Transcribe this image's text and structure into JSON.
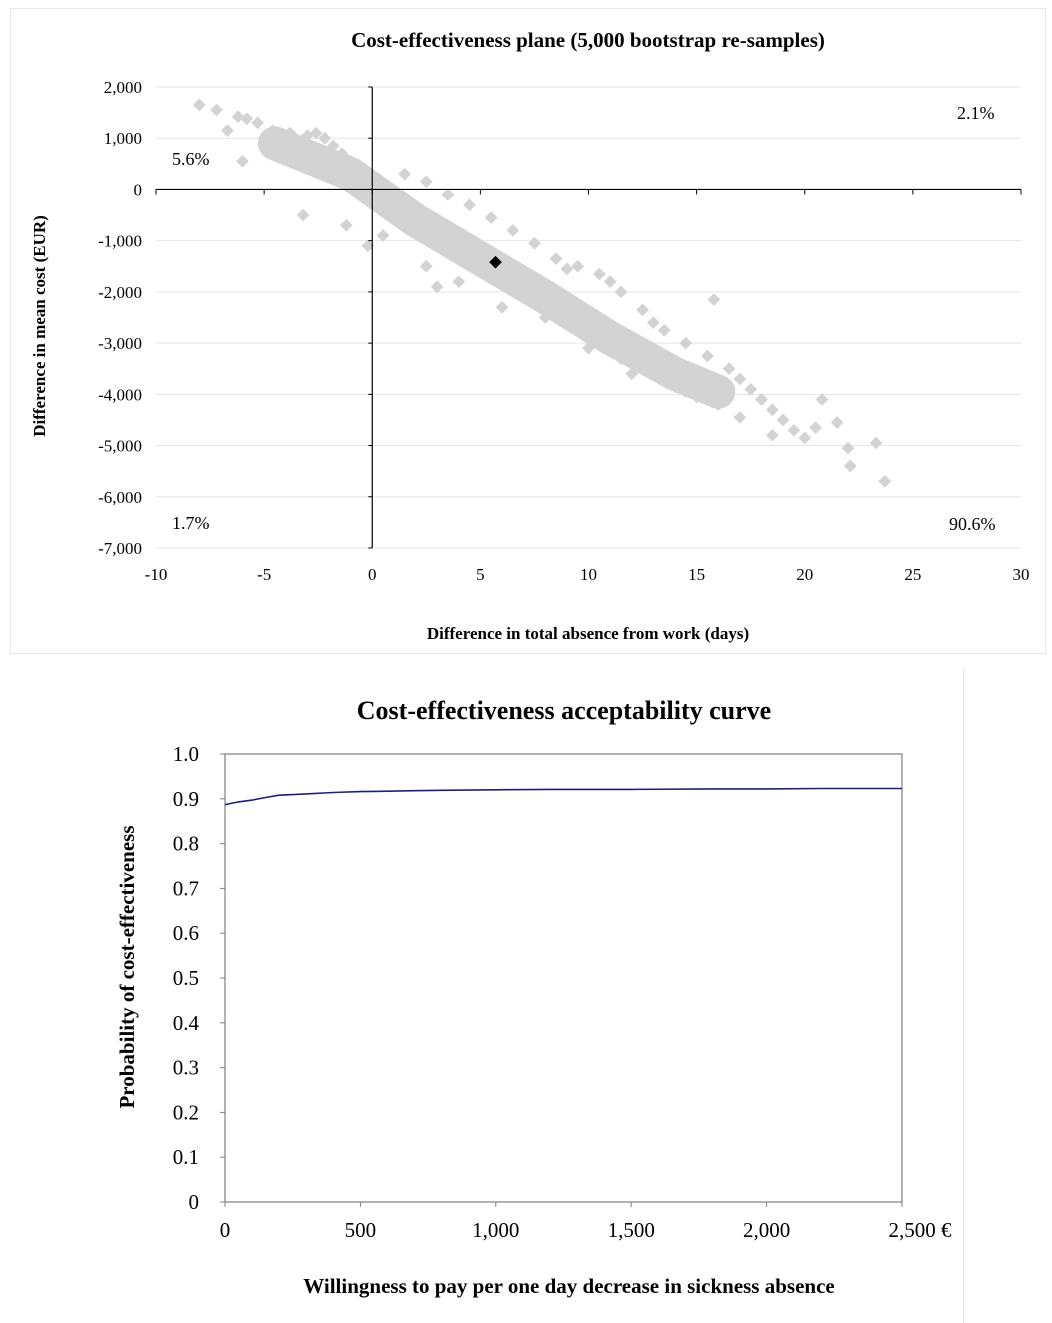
{
  "chart_data": [
    {
      "type": "scatter",
      "title": "Cost-effectiveness plane (5,000 bootstrap re-samples)",
      "xlabel": "Difference in total absence from work (days)",
      "ylabel": "Difference in mean cost (EUR)",
      "xlim": [
        -10,
        30
      ],
      "ylim": [
        -7000,
        2000
      ],
      "x_ticks": [
        -10,
        -5,
        0,
        5,
        10,
        15,
        20,
        25,
        30
      ],
      "x_tick_labels": [
        "-10",
        "-5",
        "0",
        "5",
        "10",
        "15",
        "20",
        "25",
        "30"
      ],
      "y_ticks": [
        2000,
        1000,
        0,
        -1000,
        -2000,
        -3000,
        -4000,
        -5000,
        -6000,
        -7000
      ],
      "y_tick_labels": [
        "2,000",
        "1,000",
        "0",
        "-1,000",
        "-2,000",
        "-3,000",
        "-4,000",
        "-5,000",
        "-6,000",
        "-7,000"
      ],
      "grid": true,
      "point_estimate": {
        "x": 5.7,
        "y": -1420
      },
      "series": [
        {
          "values": [
            [
              -8.0,
              1650
            ],
            [
              -7.2,
              1550
            ],
            [
              -6.7,
              1150
            ],
            [
              -6.2,
              1420
            ],
            [
              -5.8,
              1380
            ],
            [
              -6.0,
              550
            ],
            [
              -5.3,
              1300
            ],
            [
              -5.0,
              1000
            ],
            [
              -4.6,
              1150
            ],
            [
              -4.2,
              1050
            ],
            [
              -3.8,
              1100
            ],
            [
              -3.4,
              950
            ],
            [
              -3.0,
              1050
            ],
            [
              -2.6,
              1100
            ],
            [
              -2.2,
              1000
            ],
            [
              -1.8,
              850
            ],
            [
              -1.4,
              700
            ],
            [
              -1.0,
              550
            ],
            [
              -0.6,
              400
            ],
            [
              -0.2,
              300
            ],
            [
              0.2,
              150
            ],
            [
              -4.5,
              700
            ],
            [
              -3.5,
              600
            ],
            [
              -2.5,
              450
            ],
            [
              -1.5,
              350
            ],
            [
              -0.5,
              150
            ],
            [
              0.5,
              -50
            ],
            [
              -3.2,
              -500
            ],
            [
              -1.2,
              -700
            ],
            [
              -0.2,
              -1100
            ],
            [
              0.5,
              -900
            ],
            [
              1.0,
              -200
            ],
            [
              1.5,
              -350
            ],
            [
              2.0,
              -500
            ],
            [
              2.5,
              -650
            ],
            [
              3.0,
              -800
            ],
            [
              3.5,
              -950
            ],
            [
              4.0,
              -1100
            ],
            [
              4.5,
              -1250
            ],
            [
              5.0,
              -1400
            ],
            [
              5.5,
              -1550
            ],
            [
              6.0,
              -1700
            ],
            [
              6.5,
              -1850
            ],
            [
              7.0,
              -2000
            ],
            [
              7.5,
              -2150
            ],
            [
              8.0,
              -2300
            ],
            [
              8.5,
              -2450
            ],
            [
              9.0,
              -2600
            ],
            [
              9.5,
              -2750
            ],
            [
              10.0,
              -2850
            ],
            [
              10.5,
              -3000
            ],
            [
              11.0,
              -3150
            ],
            [
              11.5,
              -3300
            ],
            [
              12.0,
              -3400
            ],
            [
              12.5,
              -3500
            ],
            [
              13.0,
              -3600
            ],
            [
              13.5,
              -3700
            ],
            [
              14.0,
              -3850
            ],
            [
              14.5,
              -3950
            ],
            [
              15.0,
              -4050
            ],
            [
              1.5,
              300
            ],
            [
              2.5,
              150
            ],
            [
              3.5,
              -100
            ],
            [
              4.5,
              -300
            ],
            [
              5.5,
              -550
            ],
            [
              6.5,
              -800
            ],
            [
              7.5,
              -1050
            ],
            [
              8.5,
              -1350
            ],
            [
              9.5,
              -1500
            ],
            [
              10.5,
              -1650
            ],
            [
              11.5,
              -2000
            ],
            [
              12.5,
              -2350
            ],
            [
              13.5,
              -2750
            ],
            [
              14.5,
              -3000
            ],
            [
              15.5,
              -3250
            ],
            [
              16.5,
              -3500
            ],
            [
              17.0,
              -3700
            ],
            [
              17.5,
              -3900
            ],
            [
              18.0,
              -4100
            ],
            [
              18.5,
              -4300
            ],
            [
              19.0,
              -4500
            ],
            [
              19.5,
              -4700
            ],
            [
              20.0,
              -4850
            ],
            [
              20.5,
              -4650
            ],
            [
              20.8,
              -4100
            ],
            [
              21.5,
              -4550
            ],
            [
              22.0,
              -5050
            ],
            [
              22.1,
              -5400
            ],
            [
              23.3,
              -4950
            ],
            [
              23.7,
              -5700
            ],
            [
              16.0,
              -4200
            ],
            [
              17.0,
              -4450
            ],
            [
              18.5,
              -4800
            ],
            [
              15.8,
              -2150
            ],
            [
              13.0,
              -2600
            ],
            [
              11.0,
              -1800
            ],
            [
              9.0,
              -1550
            ],
            [
              2.5,
              -1500
            ],
            [
              4.0,
              -1800
            ],
            [
              6.0,
              -2300
            ],
            [
              8.0,
              -2500
            ],
            [
              10.0,
              -3100
            ],
            [
              12.0,
              -3600
            ],
            [
              3.0,
              -1900
            ]
          ]
        }
      ],
      "annotations": [
        "5.6%",
        "2.1%",
        "1.7%",
        "90.6%"
      ]
    },
    {
      "type": "line",
      "title": "Cost-effectiveness acceptability curve",
      "xlabel": "Willingness to pay per one day decrease  in sickness absence",
      "ylabel": "Probability of cost-effectiveness",
      "xlim": [
        0,
        2500
      ],
      "ylim": [
        0,
        1.0
      ],
      "x_ticks": [
        0,
        500,
        1000,
        1500,
        2000,
        2500
      ],
      "x_tick_labels": [
        "0",
        "500",
        "1,000",
        "1,500",
        "2,000",
        "2,500 €"
      ],
      "y_ticks": [
        1.0,
        0.9,
        0.8,
        0.7,
        0.6,
        0.5,
        0.4,
        0.3,
        0.2,
        0.1,
        0
      ],
      "y_tick_labels": [
        "1.0",
        "0.9",
        "0.8",
        "0.7",
        "0.6",
        "0.5",
        "0.4",
        "0.3",
        "0.2",
        "0.1",
        "0"
      ],
      "grid": false,
      "series": [
        {
          "x": [
            0,
            50,
            100,
            150,
            200,
            300,
            400,
            500,
            600,
            700,
            800,
            1000,
            1200,
            1500,
            1800,
            2000,
            2200,
            2500
          ],
          "values": [
            0.887,
            0.893,
            0.897,
            0.903,
            0.908,
            0.911,
            0.914,
            0.916,
            0.917,
            0.918,
            0.919,
            0.92,
            0.921,
            0.921,
            0.922,
            0.922,
            0.923,
            0.923
          ]
        }
      ]
    }
  ],
  "colors": {
    "scatter_points": "#d3d3d3",
    "point_estimate": "#000000",
    "curve": "#1f1f7a",
    "gridlines": "#e5e5e5"
  }
}
